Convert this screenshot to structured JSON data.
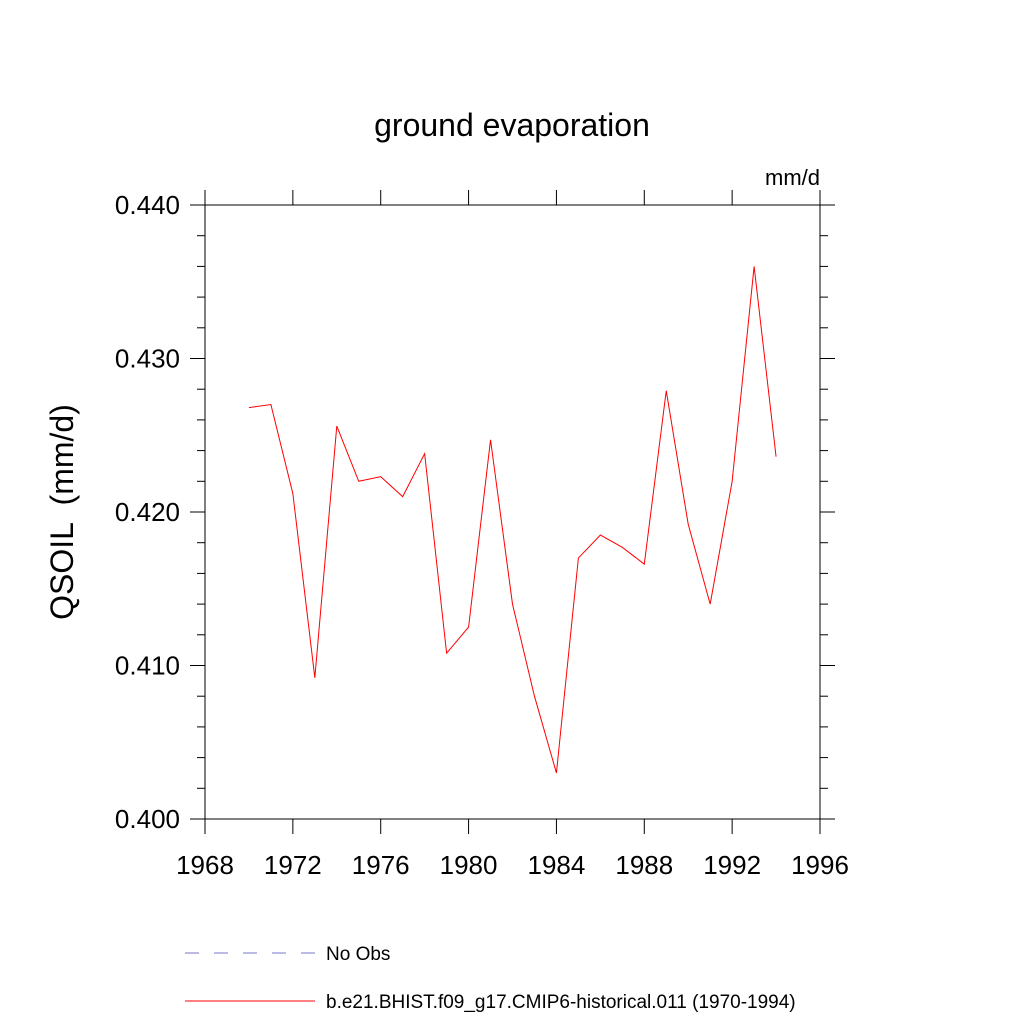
{
  "chart_data": {
    "type": "line",
    "title": "ground evaporation",
    "units": "mm/d",
    "ylabel": "QSOIL  (mm/d)",
    "xlabel": "",
    "xlim": [
      1968,
      1996
    ],
    "ylim": [
      0.4,
      0.44
    ],
    "xticks": [
      "1968",
      "1972",
      "1976",
      "1980",
      "1984",
      "1988",
      "1992",
      "1996"
    ],
    "yticks": [
      "0.400",
      "0.410",
      "0.420",
      "0.430",
      "0.440"
    ],
    "grid": false,
    "legend_position": "bottom",
    "series": [
      {
        "name": "b.e21.BHIST.f09_g17.CMIP6-historical.011 (1970-1994)",
        "color": "#ff0000",
        "style": "solid",
        "x": [
          1970,
          1971,
          1972,
          1973,
          1974,
          1975,
          1976,
          1977,
          1978,
          1979,
          1980,
          1981,
          1982,
          1983,
          1984,
          1985,
          1986,
          1987,
          1988,
          1989,
          1990,
          1991,
          1992,
          1993,
          1994
        ],
        "y": [
          0.4268,
          0.427,
          0.4212,
          0.4092,
          0.4256,
          0.422,
          0.4223,
          0.421,
          0.4238,
          0.4108,
          0.4125,
          0.4247,
          0.414,
          0.408,
          0.403,
          0.417,
          0.4185,
          0.4177,
          0.4166,
          0.4279,
          0.4192,
          0.414,
          0.422,
          0.436,
          0.4236
        ]
      }
    ],
    "legend": [
      {
        "label": "No Obs",
        "color": "#7777cc",
        "style": "dashed"
      },
      {
        "label": "b.e21.BHIST.f09_g17.CMIP6-historical.011 (1970-1994)",
        "color": "#ff0000",
        "style": "solid"
      }
    ]
  }
}
